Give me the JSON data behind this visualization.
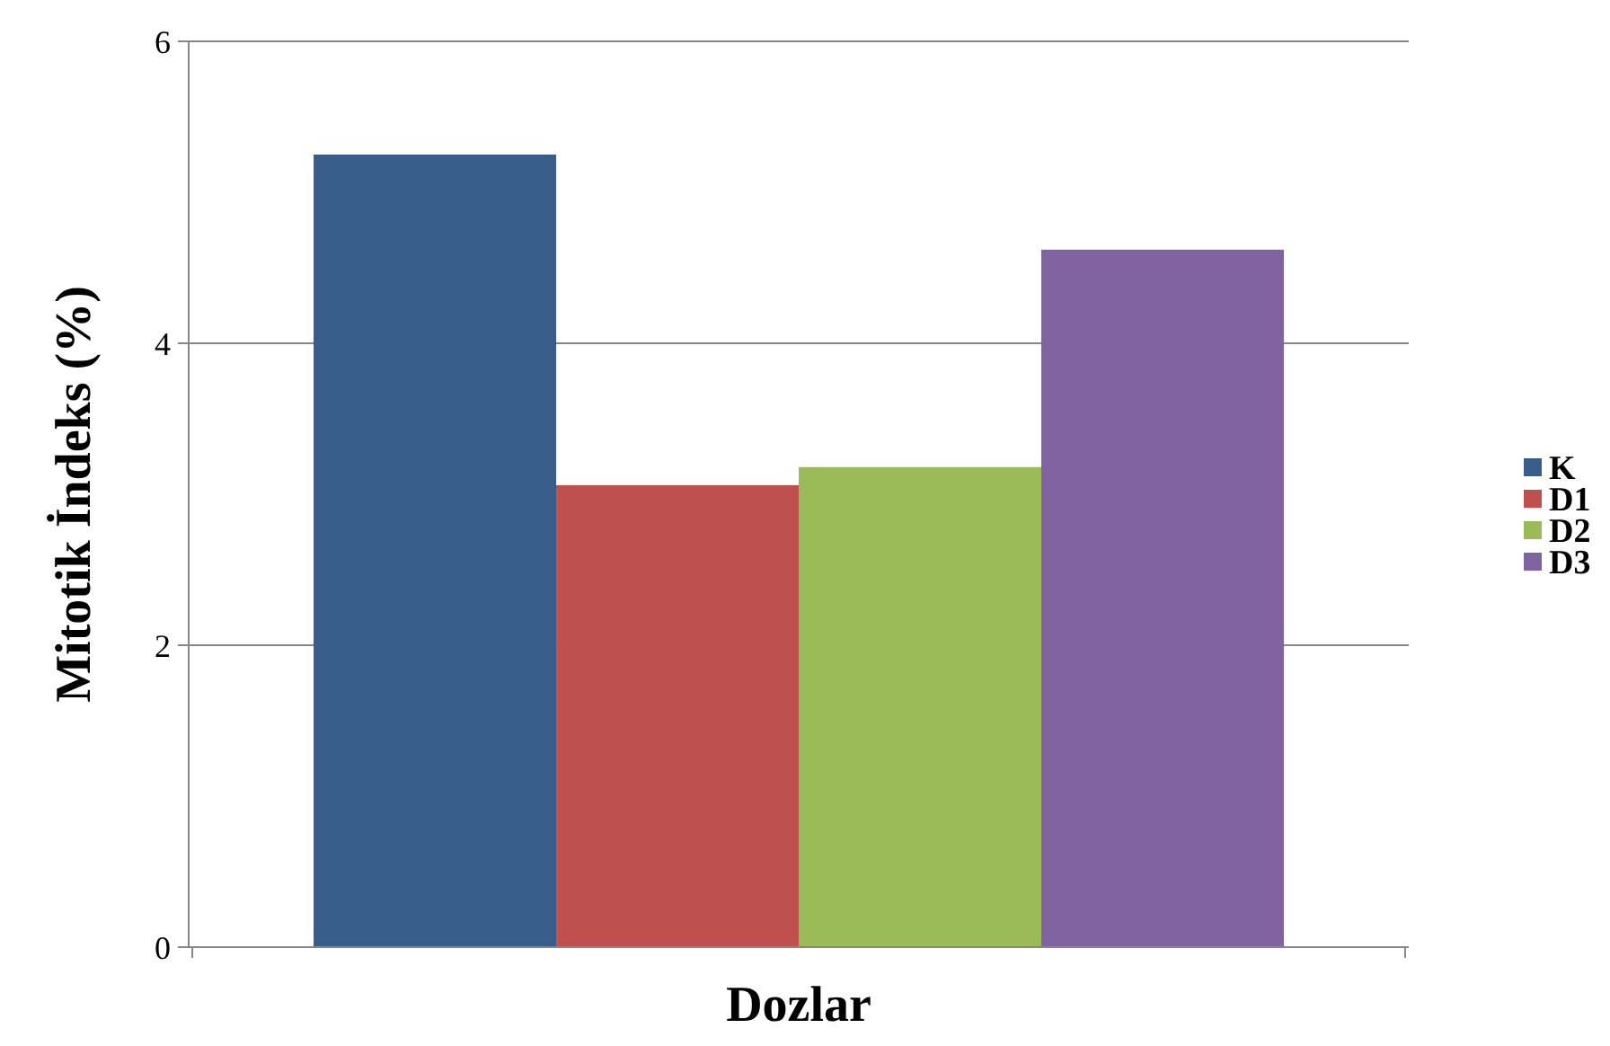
{
  "chart_data": {
    "type": "bar",
    "xlabel": "Dozlar",
    "ylabel": "Mitotik İndeks (%)",
    "categories": [
      null
    ],
    "series": [
      {
        "name": "K",
        "color": "#385d8a",
        "values": [
          5.25
        ]
      },
      {
        "name": "D1",
        "color": "#c0504d",
        "values": [
          3.06
        ]
      },
      {
        "name": "D2",
        "color": "#9bbb59",
        "values": [
          3.18
        ]
      },
      {
        "name": "D3",
        "color": "#8064a2",
        "values": [
          4.62
        ]
      }
    ],
    "ylim": [
      0,
      6
    ],
    "yticks": [
      0,
      2,
      4,
      6
    ],
    "grid": "y",
    "legend": "right"
  }
}
